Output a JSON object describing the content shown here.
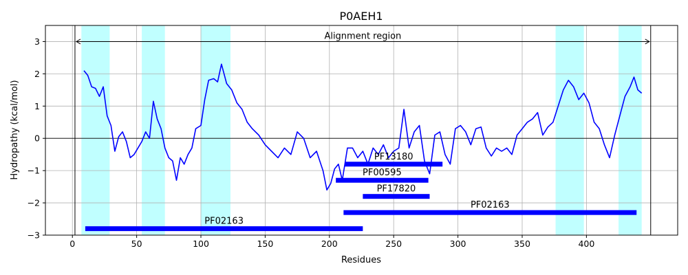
{
  "chart_data": {
    "type": "line",
    "title": "P0AEH1",
    "xlabel": "Residues",
    "ylabel": "Hydropathy (kcal/mol)",
    "xlim": [
      -21,
      471
    ],
    "ylim": [
      -3,
      3.5
    ],
    "xticks": [
      0,
      50,
      100,
      150,
      200,
      250,
      300,
      350,
      400
    ],
    "yticks": [
      -3,
      -2,
      -1,
      0,
      1,
      2,
      3
    ],
    "grid": true,
    "colors": {
      "line": "#0000ff",
      "band": "#c0ffff",
      "domain": "#0000ff"
    },
    "highlight_regions": [
      [
        7,
        29
      ],
      [
        54,
        72
      ],
      [
        100,
        123
      ],
      [
        376,
        398
      ],
      [
        425,
        443
      ]
    ],
    "alignment_region": {
      "label": "Alignment region",
      "start": 2,
      "end": 450,
      "y": 3.0
    },
    "domains": [
      {
        "label": "PF13180",
        "start": 212,
        "end": 288,
        "y": -0.8
      },
      {
        "label": "PF00595",
        "start": 205,
        "end": 277,
        "y": -1.3
      },
      {
        "label": "PF17820",
        "start": 226,
        "end": 278,
        "y": -1.8
      },
      {
        "label": "PF02163",
        "start": 211,
        "end": 439,
        "y": -2.3
      },
      {
        "label": "PF02163",
        "start": 10,
        "end": 226,
        "y": -2.8
      }
    ],
    "series": [
      {
        "x": [
          9,
          12,
          15,
          18,
          21,
          24,
          27,
          30,
          33,
          36,
          39,
          42,
          45,
          48,
          51,
          54,
          57,
          60,
          63,
          66,
          69,
          72,
          75,
          78,
          81,
          84,
          87,
          90,
          93,
          96,
          100,
          103,
          106,
          110,
          113,
          116,
          120,
          124,
          128,
          132,
          136,
          140,
          145,
          150,
          155,
          160,
          165,
          170,
          175,
          180,
          185,
          190,
          195,
          198,
          201,
          204,
          207,
          210,
          214,
          218,
          222,
          226,
          230,
          234,
          238,
          242,
          246,
          250,
          254,
          258,
          262,
          266,
          270,
          274,
          278,
          282,
          286,
          290,
          294,
          298,
          302,
          306,
          310,
          314,
          318,
          322,
          326,
          330,
          334,
          338,
          342,
          346,
          350,
          354,
          358,
          362,
          366,
          370,
          374,
          378,
          382,
          386,
          390,
          394,
          398,
          402,
          406,
          410,
          414,
          418,
          422,
          426,
          430,
          434,
          437,
          440,
          443
        ],
        "y": [
          2.1,
          1.95,
          1.6,
          1.55,
          1.3,
          1.6,
          0.7,
          0.4,
          -0.4,
          0.05,
          0.2,
          -0.1,
          -0.6,
          -0.5,
          -0.3,
          -0.1,
          0.2,
          0.0,
          1.15,
          0.6,
          0.3,
          -0.3,
          -0.6,
          -0.7,
          -1.3,
          -0.6,
          -0.8,
          -0.5,
          -0.3,
          0.3,
          0.4,
          1.2,
          1.8,
          1.85,
          1.75,
          2.3,
          1.7,
          1.5,
          1.1,
          0.9,
          0.5,
          0.3,
          0.1,
          -0.2,
          -0.4,
          -0.6,
          -0.3,
          -0.5,
          0.2,
          0.0,
          -0.6,
          -0.4,
          -1.0,
          -1.6,
          -1.4,
          -0.95,
          -0.8,
          -1.3,
          -0.3,
          -0.3,
          -0.6,
          -0.4,
          -0.8,
          -0.3,
          -0.5,
          -0.2,
          -0.6,
          -0.4,
          -0.3,
          0.9,
          -0.3,
          0.2,
          0.4,
          -0.7,
          -1.1,
          0.1,
          0.2,
          -0.5,
          -0.8,
          0.3,
          0.4,
          0.2,
          -0.2,
          0.3,
          0.35,
          -0.3,
          -0.55,
          -0.3,
          -0.4,
          -0.3,
          -0.5,
          0.1,
          0.3,
          0.5,
          0.6,
          0.8,
          0.1,
          0.35,
          0.5,
          1.0,
          1.5,
          1.8,
          1.6,
          1.2,
          1.4,
          1.1,
          0.5,
          0.3,
          -0.2,
          -0.6,
          0.1,
          0.7,
          1.3,
          1.6,
          1.9,
          1.5,
          1.4
        ]
      }
    ]
  }
}
